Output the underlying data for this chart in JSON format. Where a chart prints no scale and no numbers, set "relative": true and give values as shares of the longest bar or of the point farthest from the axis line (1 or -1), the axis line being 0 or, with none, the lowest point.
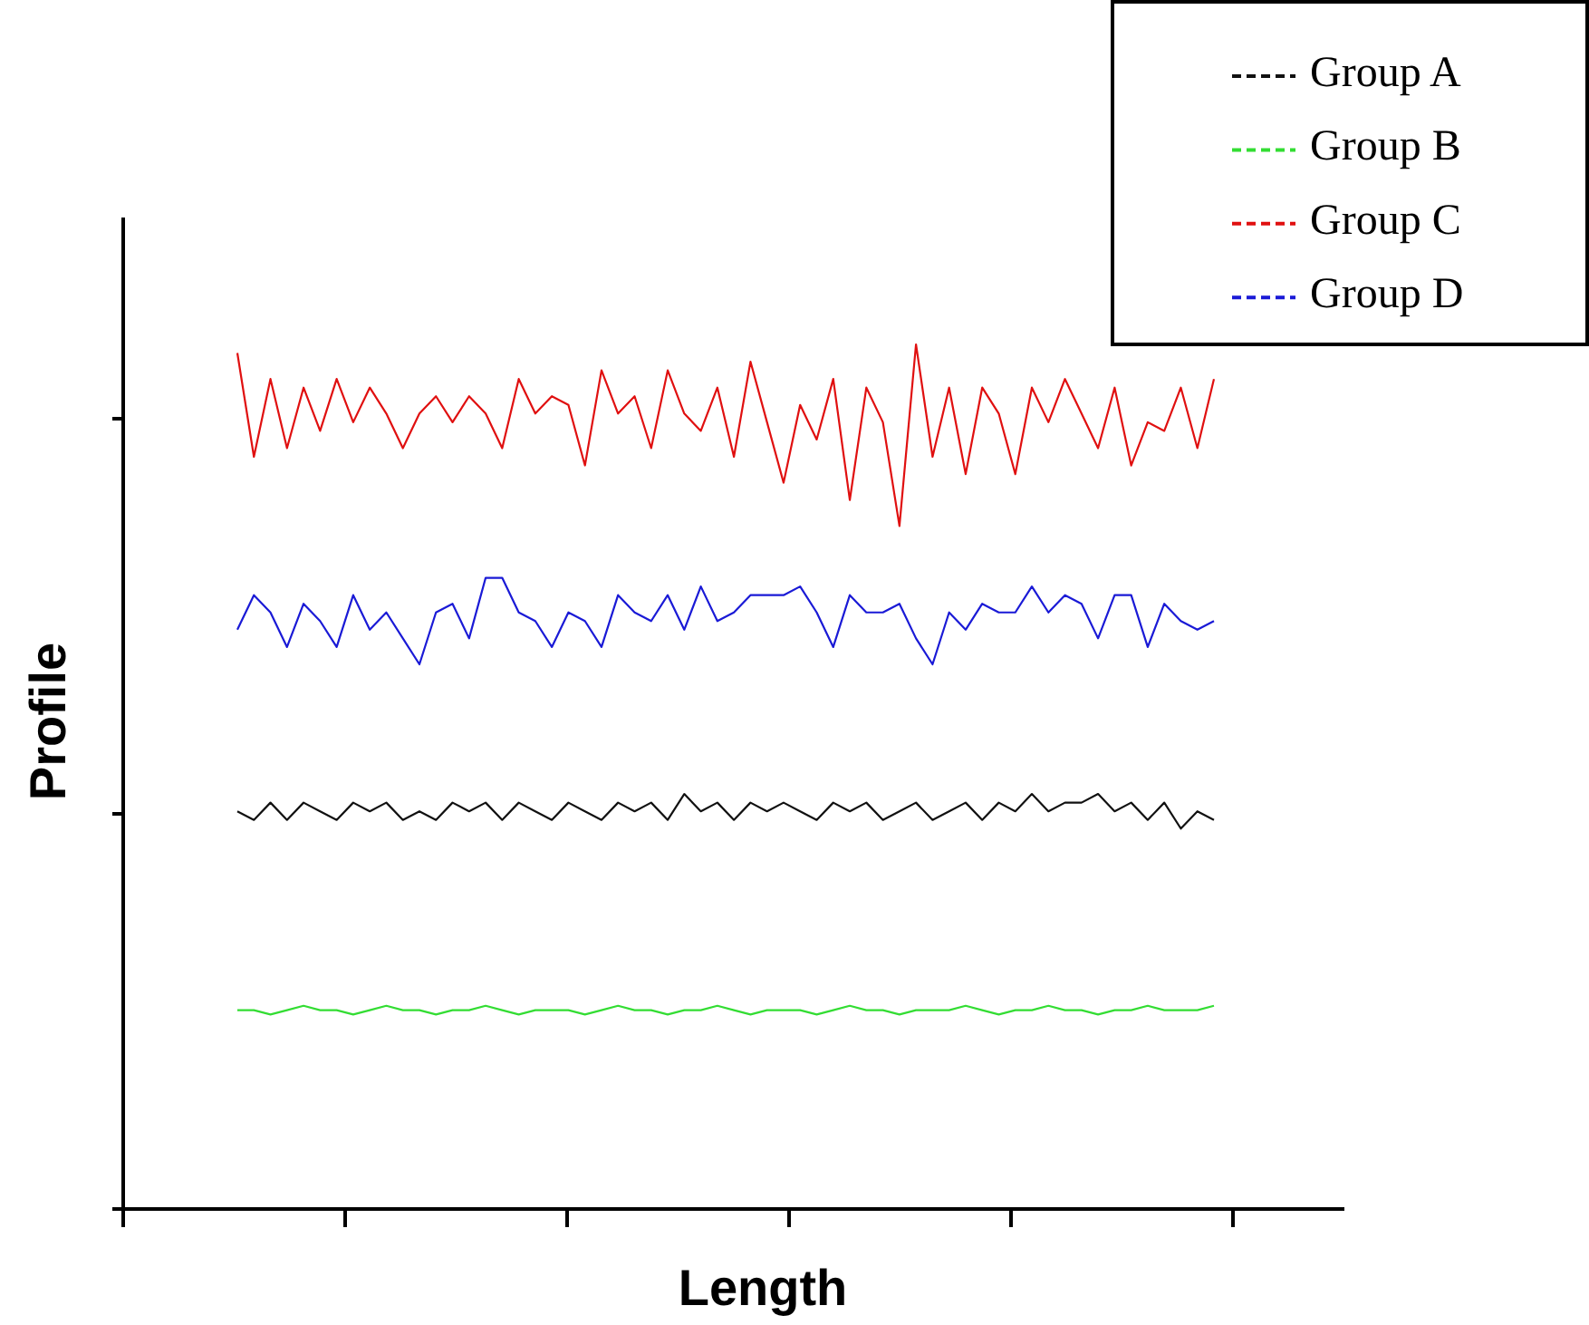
{
  "chart_data": {
    "type": "line",
    "relative": true,
    "xlabel": "Length",
    "ylabel": "Profile",
    "legend": "top right",
    "line_style": "solid",
    "marker": "none",
    "categories": [
      null,
      null,
      null,
      null,
      null,
      null,
      null,
      null,
      null,
      null,
      null,
      null,
      null,
      null,
      null,
      null,
      null,
      null,
      null,
      null,
      null,
      null,
      null,
      null,
      null,
      null,
      null,
      null,
      null,
      null,
      null,
      null,
      null,
      null,
      null,
      null,
      null,
      null,
      null,
      null,
      null,
      null,
      null,
      null,
      null,
      null,
      null,
      null,
      null,
      null,
      null,
      null,
      null,
      null,
      null,
      null,
      null,
      null,
      null,
      null
    ],
    "series": [
      {
        "name": "Group A",
        "color": "#111111",
        "values": [
          0.46,
          0.45,
          0.47,
          0.45,
          0.47,
          0.46,
          0.45,
          0.47,
          0.46,
          0.47,
          0.45,
          0.46,
          0.45,
          0.47,
          0.46,
          0.47,
          0.45,
          0.47,
          0.46,
          0.45,
          0.47,
          0.46,
          0.45,
          0.47,
          0.46,
          0.47,
          0.45,
          0.48,
          0.46,
          0.47,
          0.45,
          0.47,
          0.46,
          0.47,
          0.46,
          0.45,
          0.47,
          0.46,
          0.47,
          0.45,
          0.46,
          0.47,
          0.45,
          0.46,
          0.47,
          0.45,
          0.47,
          0.46,
          0.48,
          0.46,
          0.47,
          0.47,
          0.48,
          0.46,
          0.47,
          0.45,
          0.47,
          0.44,
          0.46,
          0.45
        ]
      },
      {
        "name": "Group B",
        "color": "#33dd33",
        "values": [
          0.23,
          0.23,
          0.225,
          0.23,
          0.235,
          0.23,
          0.23,
          0.225,
          0.23,
          0.235,
          0.23,
          0.23,
          0.225,
          0.23,
          0.23,
          0.235,
          0.23,
          0.225,
          0.23,
          0.23,
          0.23,
          0.225,
          0.23,
          0.235,
          0.23,
          0.23,
          0.225,
          0.23,
          0.23,
          0.235,
          0.23,
          0.225,
          0.23,
          0.23,
          0.23,
          0.225,
          0.23,
          0.235,
          0.23,
          0.23,
          0.225,
          0.23,
          0.23,
          0.23,
          0.235,
          0.23,
          0.225,
          0.23,
          0.23,
          0.235,
          0.23,
          0.23,
          0.225,
          0.23,
          0.23,
          0.235,
          0.23,
          0.23,
          0.23,
          0.235
        ]
      },
      {
        "name": "Group C",
        "color": "#e01010",
        "values": [
          0.99,
          0.87,
          0.96,
          0.88,
          0.95,
          0.9,
          0.96,
          0.91,
          0.95,
          0.92,
          0.88,
          0.92,
          0.94,
          0.91,
          0.94,
          0.92,
          0.88,
          0.96,
          0.92,
          0.94,
          0.93,
          0.86,
          0.97,
          0.92,
          0.94,
          0.88,
          0.97,
          0.92,
          0.9,
          0.95,
          0.87,
          0.98,
          0.91,
          0.84,
          0.93,
          0.89,
          0.96,
          0.82,
          0.95,
          0.91,
          0.79,
          1,
          0.87,
          0.95,
          0.85,
          0.95,
          0.92,
          0.85,
          0.95,
          0.91,
          0.96,
          0.92,
          0.88,
          0.95,
          0.86,
          0.91,
          0.9,
          0.95,
          0.88,
          0.96
        ]
      },
      {
        "name": "Group D",
        "color": "#1a1ad6",
        "values": [
          0.67,
          0.71,
          0.69,
          0.65,
          0.7,
          0.68,
          0.65,
          0.71,
          0.67,
          0.69,
          0.66,
          0.63,
          0.69,
          0.7,
          0.66,
          0.73,
          0.73,
          0.69,
          0.68,
          0.65,
          0.69,
          0.68,
          0.65,
          0.71,
          0.69,
          0.68,
          0.71,
          0.67,
          0.72,
          0.68,
          0.69,
          0.71,
          0.71,
          0.71,
          0.72,
          0.69,
          0.65,
          0.71,
          0.69,
          0.69,
          0.7,
          0.66,
          0.63,
          0.69,
          0.67,
          0.7,
          0.69,
          0.69,
          0.72,
          0.69,
          0.71,
          0.7,
          0.66,
          0.71,
          0.71,
          0.65,
          0.7,
          0.68,
          0.67,
          0.68
        ]
      }
    ]
  }
}
